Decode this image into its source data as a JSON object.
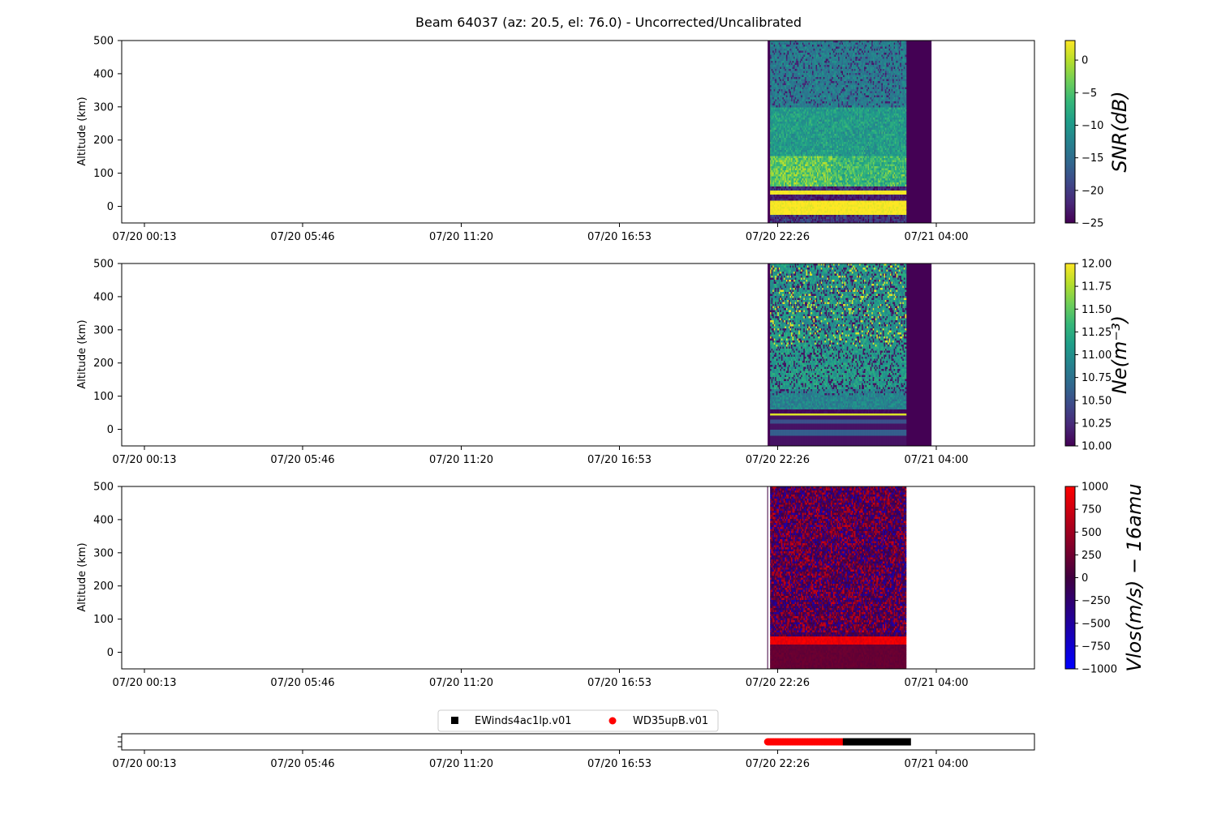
{
  "title": "Beam 64037 (az: 20.5, el: 76.0) - Uncorrected/Uncalibrated",
  "colors": {
    "viridis": [
      "#440154",
      "#482878",
      "#3e4989",
      "#31688e",
      "#26828e",
      "#1f9e89",
      "#35b779",
      "#6ece58",
      "#b5de2b",
      "#fde725"
    ],
    "bwr_start": "#0000ff",
    "bwr_mid": "#400040",
    "bwr_end": "#ff0000",
    "legend_series_1": "#000000",
    "legend_series_2": "#ff0000"
  },
  "chart_data": [
    {
      "type": "heatmap",
      "panel": "snr",
      "ylabel": "Altitude (km)",
      "yticks": [
        "500",
        "400",
        "300",
        "200",
        "100",
        "0"
      ],
      "ytick_values": [
        500,
        400,
        300,
        200,
        100,
        0
      ],
      "ylim": [
        -50,
        500
      ],
      "xticks": [
        "07/20 00:13",
        "07/20 05:46",
        "07/20 11:20",
        "07/20 16:53",
        "07/20 22:26",
        "07/21 04:00"
      ],
      "colorbar": {
        "label": "SNR(dB)",
        "ticks": [
          "0",
          "−5",
          "−10",
          "−15",
          "−20",
          "−25"
        ],
        "tick_values": [
          0,
          -5,
          -10,
          -15,
          -20,
          -25
        ],
        "range": [
          -25,
          3
        ],
        "colormap": "viridis"
      },
      "data_start_time": "07/20 22:05",
      "data_end_time": "07/21 03:50",
      "empty_end_time": "07/21 01:56"
    },
    {
      "type": "heatmap",
      "panel": "ne",
      "ylabel": "Altitude (km)",
      "yticks": [
        "500",
        "400",
        "300",
        "200",
        "100",
        "0"
      ],
      "ytick_values": [
        500,
        400,
        300,
        200,
        100,
        0
      ],
      "ylim": [
        -50,
        500
      ],
      "xticks": [
        "07/20 00:13",
        "07/20 05:46",
        "07/20 11:20",
        "07/20 16:53",
        "07/20 22:26",
        "07/21 04:00"
      ],
      "colorbar": {
        "label": "Ne(m⁻³)",
        "ticks": [
          "12.00",
          "11.75",
          "11.50",
          "11.25",
          "11.00",
          "10.75",
          "10.50",
          "10.25",
          "10.00"
        ],
        "tick_values": [
          12.0,
          11.75,
          11.5,
          11.25,
          11.0,
          10.75,
          10.5,
          10.25,
          10.0
        ],
        "range": [
          10,
          12
        ],
        "colormap": "viridis"
      }
    },
    {
      "type": "heatmap",
      "panel": "vlos",
      "ylabel": "Altitude (km)",
      "yticks": [
        "500",
        "400",
        "300",
        "200",
        "100",
        "0"
      ],
      "ytick_values": [
        500,
        400,
        300,
        200,
        100,
        0
      ],
      "ylim": [
        -50,
        500
      ],
      "xticks": [
        "07/20 00:13",
        "07/20 05:46",
        "07/20 11:20",
        "07/20 16:53",
        "07/20 22:26",
        "07/21 04:00"
      ],
      "colorbar": {
        "label": "Vlos(m/s) − 16amu",
        "ticks": [
          "1000",
          "750",
          "500",
          "250",
          "0",
          "−250",
          "−500",
          "−750",
          "−1000"
        ],
        "tick_values": [
          1000,
          750,
          500,
          250,
          0,
          -250,
          -500,
          -750,
          -1000
        ],
        "range": [
          -1000,
          1000
        ],
        "colormap": "bwr"
      }
    },
    {
      "type": "scatter",
      "panel": "experiments",
      "xticks": [
        "07/20 00:13",
        "07/20 05:46",
        "07/20 11:20",
        "07/20 16:53",
        "07/20 22:26",
        "07/21 04:00"
      ],
      "series": [
        {
          "name": "EWinds4ac1lp.v01",
          "marker": "square",
          "start": "07/21 00:51",
          "end": "07/21 03:00"
        },
        {
          "name": "WD35upB.v01",
          "marker": "circle",
          "start": "07/20 22:05",
          "end": "07/21 00:51"
        }
      ]
    }
  ]
}
